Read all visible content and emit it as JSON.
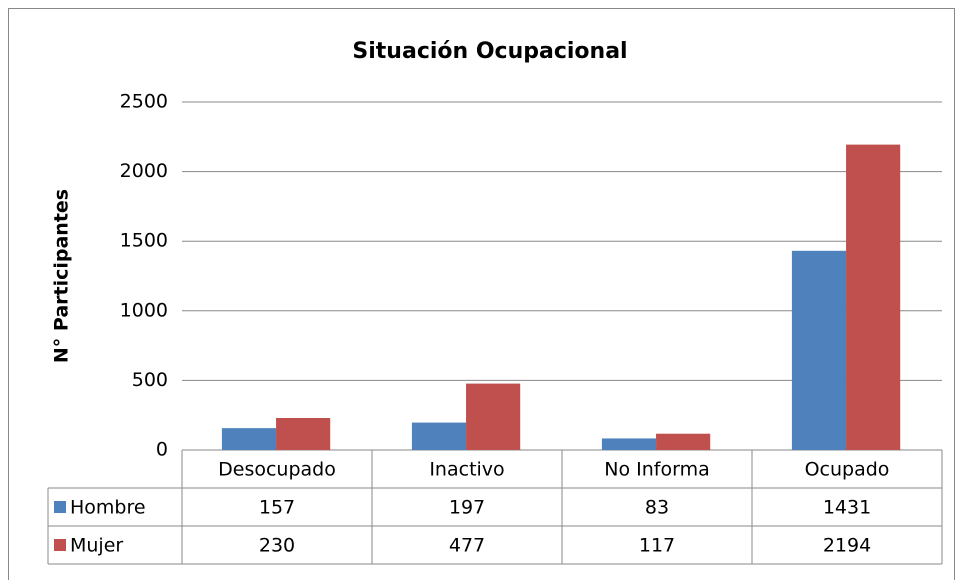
{
  "chart_data": {
    "type": "bar",
    "title": "Situación Ocupacional",
    "y_label": "N° Participantes",
    "categories": [
      "Desocupado",
      "Inactivo",
      "No Informa",
      "Ocupado"
    ],
    "series": [
      {
        "name": "Hombre",
        "color": "#4f81bd",
        "values": [
          157,
          197,
          83,
          1431
        ]
      },
      {
        "name": "Mujer",
        "color": "#c0504d",
        "values": [
          230,
          477,
          117,
          2194
        ]
      }
    ],
    "ylim": [
      0,
      2500
    ],
    "yticks": [
      0,
      500,
      1000,
      1500,
      2000,
      2500
    ],
    "grid": true,
    "data_table": true
  }
}
